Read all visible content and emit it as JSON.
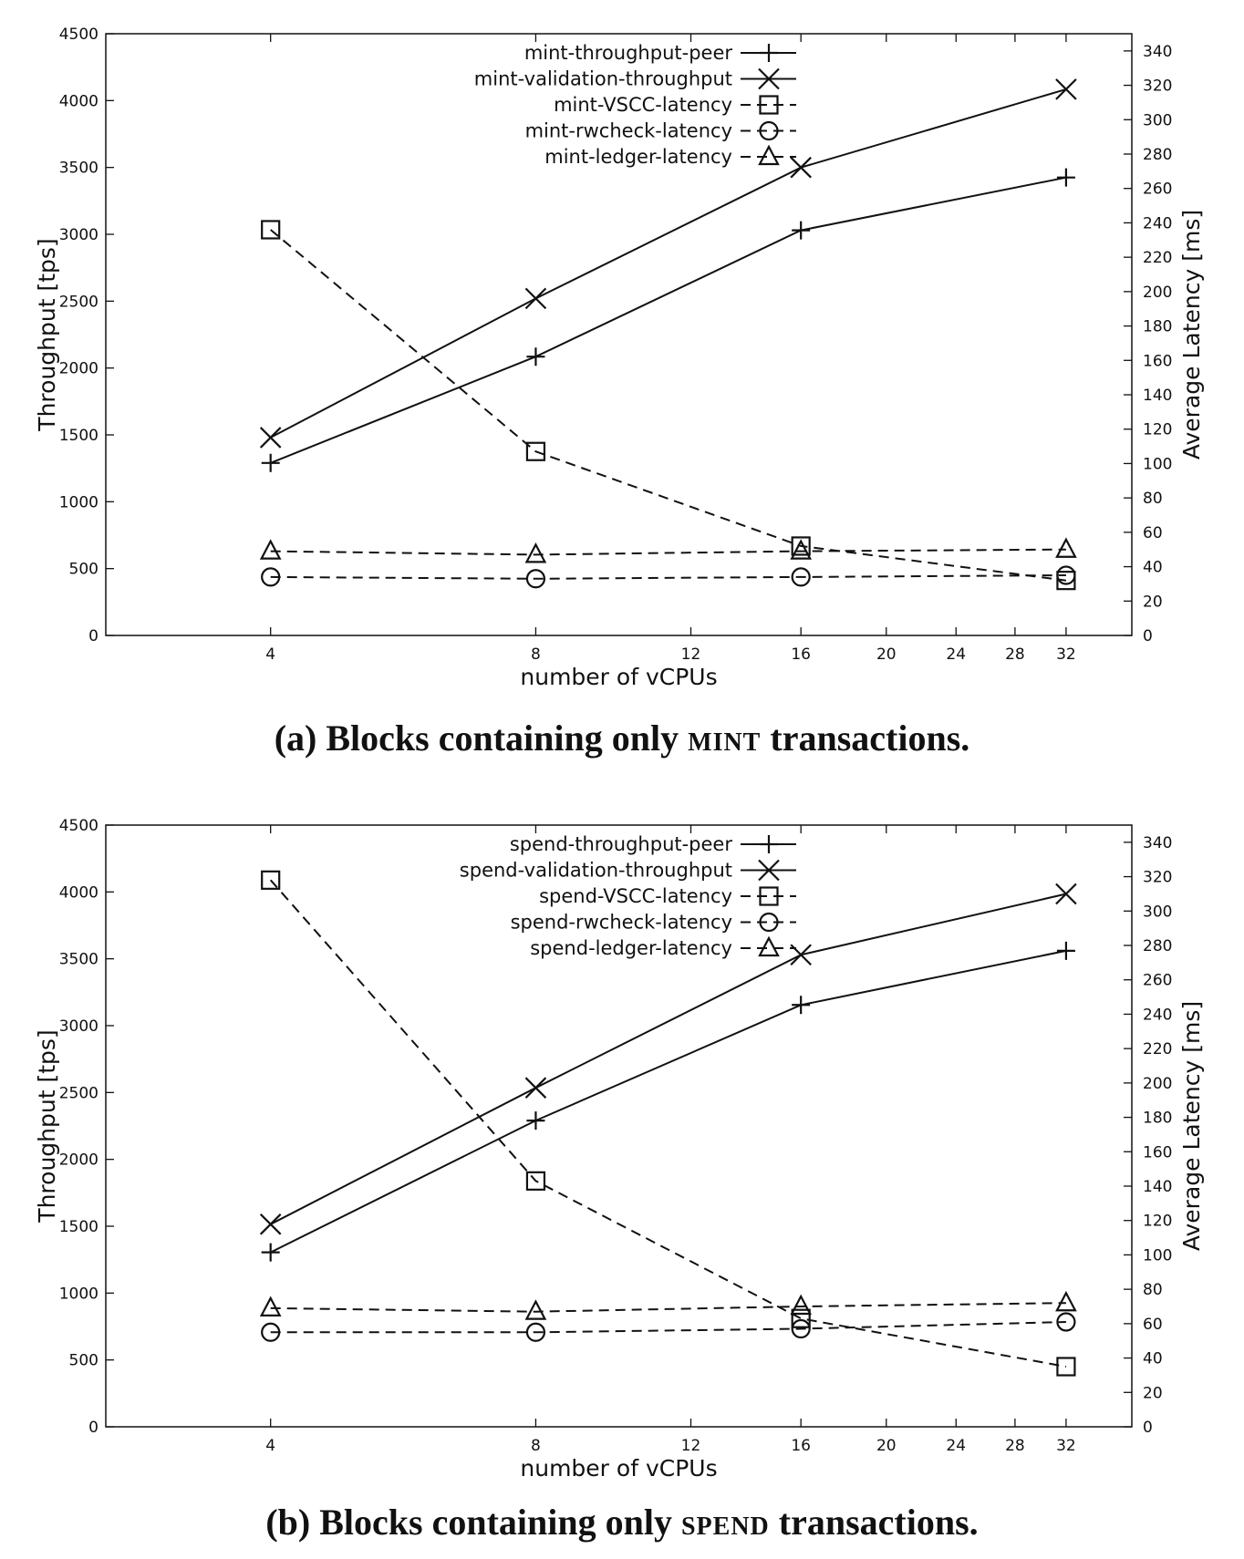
{
  "chart_data": [
    {
      "type": "line",
      "caption": {
        "prefix": "(a) Blocks containing only ",
        "smallcaps": "MINT",
        "suffix": " transactions."
      },
      "xlabel": "number of vCPUs",
      "ylabel": "Throughput [tps]",
      "y2label": "Average Latency [ms]",
      "xticks": [
        "4",
        "8",
        "12",
        "16",
        "20",
        "24",
        "28",
        "32"
      ],
      "xtick_values": [
        4,
        8,
        12,
        16,
        20,
        24,
        28,
        32
      ],
      "xlim": [
        2.6,
        38
      ],
      "yticks": [
        "0",
        "500",
        "1000",
        "1500",
        "2000",
        "2500",
        "3000",
        "3500",
        "4000",
        "4500"
      ],
      "ylim": [
        0,
        4500
      ],
      "y2ticks": [
        "0",
        "20",
        "40",
        "60",
        "80",
        "100",
        "120",
        "140",
        "160",
        "180",
        "200",
        "220",
        "240",
        "260",
        "280",
        "300",
        "320",
        "340"
      ],
      "y2lim": [
        0,
        350
      ],
      "legend_position": "top-right",
      "x": [
        4,
        8,
        16,
        32
      ],
      "series": [
        {
          "name": "mint-throughput-peer",
          "axis": "y",
          "style": "solid",
          "marker": "plus",
          "values": [
            1290,
            2085,
            3030,
            3425
          ]
        },
        {
          "name": "mint-validation-throughput",
          "axis": "y",
          "style": "solid",
          "marker": "cross",
          "values": [
            1480,
            2520,
            3500,
            4085
          ]
        },
        {
          "name": "mint-VSCC-latency",
          "axis": "y2",
          "style": "dashed",
          "marker": "square",
          "values": [
            236,
            107,
            52,
            32
          ]
        },
        {
          "name": "mint-rwcheck-latency",
          "axis": "y2",
          "style": "dashed",
          "marker": "circle",
          "values": [
            34,
            33,
            34,
            35
          ]
        },
        {
          "name": "mint-ledger-latency",
          "axis": "y2",
          "style": "dashed",
          "marker": "triangle",
          "values": [
            49,
            47,
            49,
            50
          ]
        }
      ]
    },
    {
      "type": "line",
      "caption": {
        "prefix": "(b) Blocks containing only ",
        "smallcaps": "SPEND",
        "suffix": " transactions."
      },
      "xlabel": "number of vCPUs",
      "ylabel": "Throughput [tps]",
      "y2label": "Average Latency [ms]",
      "xticks": [
        "4",
        "8",
        "12",
        "16",
        "20",
        "24",
        "28",
        "32"
      ],
      "xtick_values": [
        4,
        8,
        12,
        16,
        20,
        24,
        28,
        32
      ],
      "xlim": [
        2.6,
        38
      ],
      "yticks": [
        "0",
        "500",
        "1000",
        "1500",
        "2000",
        "2500",
        "3000",
        "3500",
        "4000",
        "4500"
      ],
      "ylim": [
        0,
        4500
      ],
      "y2ticks": [
        "0",
        "20",
        "40",
        "60",
        "80",
        "100",
        "120",
        "140",
        "160",
        "180",
        "200",
        "220",
        "240",
        "260",
        "280",
        "300",
        "320",
        "340"
      ],
      "y2lim": [
        0,
        350
      ],
      "legend_position": "top-right",
      "x": [
        4,
        8,
        16,
        32
      ],
      "series": [
        {
          "name": "spend-throughput-peer",
          "axis": "y",
          "style": "solid",
          "marker": "plus",
          "values": [
            1305,
            2290,
            3155,
            3560
          ]
        },
        {
          "name": "spend-validation-throughput",
          "axis": "y",
          "style": "solid",
          "marker": "cross",
          "values": [
            1515,
            2535,
            3530,
            3985
          ]
        },
        {
          "name": "spend-VSCC-latency",
          "axis": "y2",
          "style": "dashed",
          "marker": "square",
          "values": [
            318,
            143,
            63,
            35
          ]
        },
        {
          "name": "spend-rwcheck-latency",
          "axis": "y2",
          "style": "dashed",
          "marker": "circle",
          "values": [
            55,
            55,
            57,
            61
          ]
        },
        {
          "name": "spend-ledger-latency",
          "axis": "y2",
          "style": "dashed",
          "marker": "triangle",
          "values": [
            69,
            67,
            70,
            72
          ]
        }
      ]
    }
  ]
}
